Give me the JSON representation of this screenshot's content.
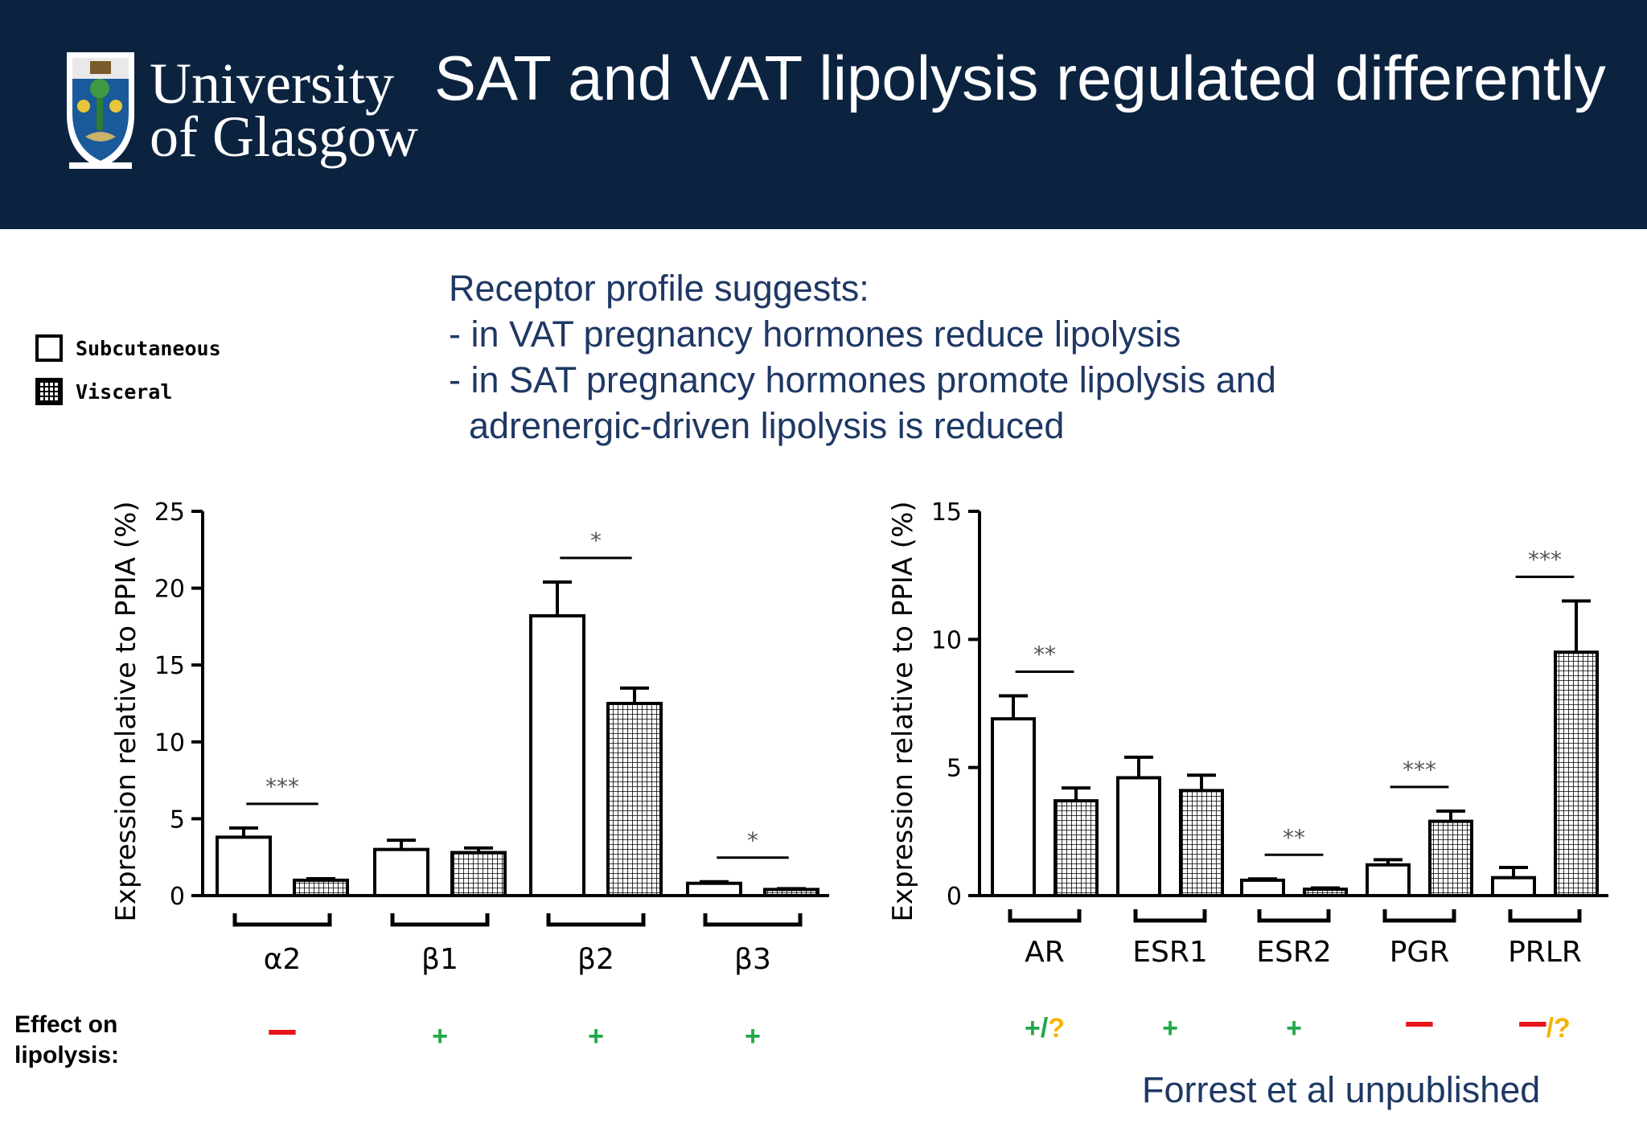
{
  "header": {
    "title": "SAT and VAT lipolysis regulated differently",
    "logo_line1": "University",
    "logo_line2": "of Glasgow"
  },
  "note": {
    "lines": [
      "Receptor profile suggests:",
      "- in VAT pregnancy hormones reduce lipolysis",
      "- in SAT pregnancy hormones promote lipolysis and",
      "  adrenergic-driven lipolysis is reduced"
    ]
  },
  "legend": {
    "items": [
      "Subcutaneous",
      "Visceral"
    ]
  },
  "effect_label": [
    "Effect on",
    "lipolysis:"
  ],
  "credit": "Forrest et al unpublished",
  "colors": {
    "header_bg": "#0c2340",
    "text_blue": "#1f3864",
    "effect_plus": "#22a84a",
    "effect_minus": "#e8141b",
    "effect_question": "#f4b400"
  },
  "chart_data": [
    {
      "type": "bar",
      "ylabel": "Expression relative to PPIA (%)",
      "ylim": [
        0,
        25
      ],
      "yticks": [
        0,
        5,
        10,
        15,
        20,
        25
      ],
      "categories": [
        "α2",
        "β1",
        "β2",
        "β3"
      ],
      "series": [
        {
          "name": "Subcutaneous",
          "values": [
            3.8,
            3.0,
            18.2,
            0.8
          ],
          "errors": [
            0.6,
            0.6,
            2.2,
            0.1
          ]
        },
        {
          "name": "Visceral",
          "values": [
            1.0,
            2.8,
            12.5,
            0.4
          ],
          "errors": [
            0.1,
            0.3,
            1.0,
            0.05
          ]
        }
      ],
      "significance": [
        "***",
        "",
        "*",
        "*"
      ],
      "effects": [
        [
          {
            "t": "-",
            "c": "minus"
          }
        ],
        [
          {
            "t": "+",
            "c": "plus"
          }
        ],
        [
          {
            "t": "+",
            "c": "plus"
          }
        ],
        [
          {
            "t": "+",
            "c": "plus"
          }
        ]
      ]
    },
    {
      "type": "bar",
      "ylabel": "Expression relative to PPIA (%)",
      "ylim": [
        0,
        15
      ],
      "yticks": [
        0,
        5,
        10,
        15
      ],
      "categories": [
        "AR",
        "ESR1",
        "ESR2",
        "PGR",
        "PRLR"
      ],
      "series": [
        {
          "name": "Subcutaneous",
          "values": [
            6.9,
            4.6,
            0.6,
            1.2,
            0.7
          ],
          "errors": [
            0.9,
            0.8,
            0.05,
            0.2,
            0.4
          ]
        },
        {
          "name": "Visceral",
          "values": [
            3.7,
            4.1,
            0.25,
            2.9,
            9.5
          ],
          "errors": [
            0.5,
            0.6,
            0.05,
            0.4,
            2.0
          ]
        }
      ],
      "significance": [
        "**",
        "",
        "**",
        "***",
        "***"
      ],
      "effects": [
        [
          {
            "t": "+",
            "c": "plus"
          },
          {
            "t": "/",
            "c": "plus"
          },
          {
            "t": "?",
            "c": "question"
          }
        ],
        [
          {
            "t": "+",
            "c": "plus"
          }
        ],
        [
          {
            "t": "+",
            "c": "plus"
          }
        ],
        [
          {
            "t": "-",
            "c": "minus"
          }
        ],
        [
          {
            "t": "-",
            "c": "minus"
          },
          {
            "t": "/?",
            "c": "question"
          }
        ]
      ]
    }
  ]
}
